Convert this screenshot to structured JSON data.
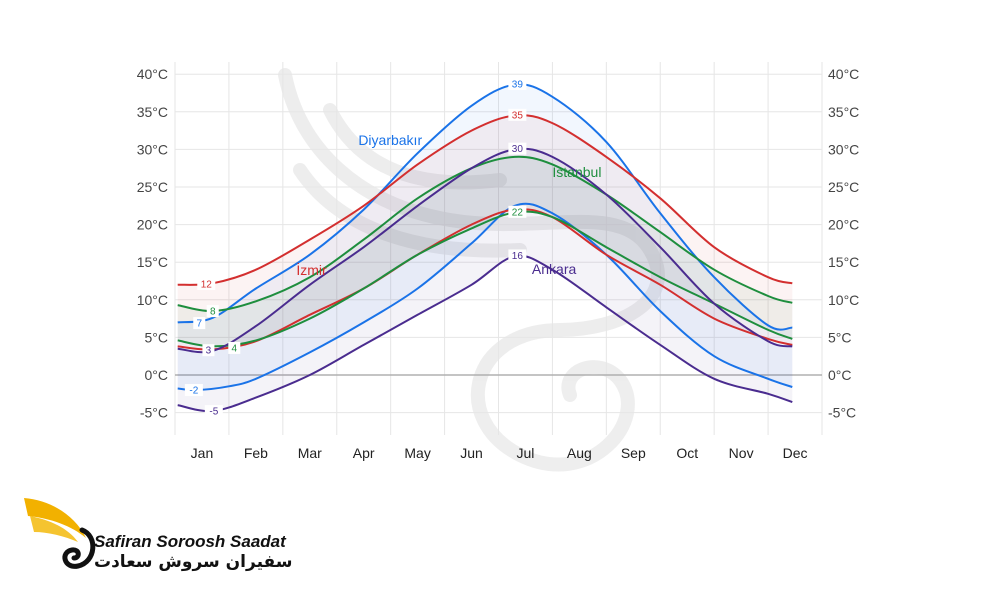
{
  "chart_data": {
    "type": "line",
    "unit": "°C",
    "y_ticks": [
      "40°C",
      "35°C",
      "30°C",
      "25°C",
      "20°C",
      "15°C",
      "10°C",
      "5°C",
      "0°C",
      "-5°C"
    ],
    "ylim": [
      -7,
      41
    ],
    "categories": [
      "Jan",
      "Feb",
      "Mar",
      "Apr",
      "May",
      "Jun",
      "Jul",
      "Aug",
      "Sep",
      "Oct",
      "Nov",
      "Dec"
    ],
    "grid": true,
    "series": [
      {
        "name": "Diyarbakır",
        "kind": "high",
        "color": "#1a73e8",
        "x": [
          0.05,
          0.7,
          1.5,
          2.5,
          3.5,
          4.5,
          5.5,
          6.3,
          7.0,
          8.0,
          9.0,
          10.0,
          11.0,
          11.45
        ],
        "values": [
          7,
          7.6,
          11.5,
          16,
          22,
          29.5,
          35.8,
          38.6,
          37,
          31,
          21.5,
          13,
          6.6,
          6.3
        ]
      },
      {
        "name": "",
        "kind": "low",
        "color": "#1a73e8",
        "x": [
          0.05,
          0.4,
          1.0,
          1.5,
          2.5,
          3.5,
          4.5,
          5.5,
          6.3,
          7.0,
          8.0,
          9.0,
          10.0,
          11.0,
          11.45
        ],
        "values": [
          -1.8,
          -2,
          -1.5,
          -0.5,
          3,
          7,
          11.5,
          17.5,
          22.5,
          21.5,
          16,
          8.5,
          2.5,
          -0.5,
          -1.6
        ]
      },
      {
        "name": "İzmir",
        "kind": "high",
        "color": "#d32f2f",
        "x": [
          0.05,
          0.7,
          1.5,
          2.5,
          3.5,
          4.5,
          5.5,
          6.3,
          7.0,
          8.0,
          9.0,
          10.0,
          11.0,
          11.45
        ],
        "values": [
          12,
          12.2,
          14,
          18,
          22.5,
          28,
          32.5,
          34.5,
          33.5,
          29,
          23.5,
          17,
          13,
          12.2
        ]
      },
      {
        "name": "",
        "kind": "low",
        "color": "#d32f2f",
        "x": [
          0.05,
          0.7,
          1.5,
          2.5,
          3.5,
          4.5,
          5.5,
          6.3,
          7.0,
          8.0,
          9.0,
          10.0,
          11.0,
          11.45
        ],
        "values": [
          3.8,
          3.4,
          4.5,
          8,
          11.5,
          16,
          20,
          22,
          21,
          16,
          12,
          7.5,
          4.8,
          4
        ]
      },
      {
        "name": "İstanbul",
        "kind": "high",
        "color": "#1e8e3e",
        "x": [
          0.05,
          0.7,
          1.5,
          2.5,
          3.5,
          4.5,
          5.5,
          6.3,
          7.0,
          8.0,
          9.0,
          10.0,
          11.0,
          11.45
        ],
        "values": [
          9.3,
          8.5,
          9.8,
          13,
          18,
          23.5,
          27.5,
          29,
          28,
          24,
          19,
          14,
          10.5,
          9.6
        ]
      },
      {
        "name": "",
        "kind": "low",
        "color": "#1e8e3e",
        "x": [
          0.05,
          0.7,
          1.5,
          2.5,
          3.5,
          4.5,
          5.5,
          6.3,
          7.0,
          8.0,
          9.0,
          10.0,
          11.0,
          11.45
        ],
        "values": [
          4.6,
          3.8,
          4.6,
          7.5,
          11.5,
          16,
          19.5,
          21.6,
          21,
          17,
          13,
          9.5,
          6,
          4.8
        ]
      },
      {
        "name": "Ankara",
        "kind": "high",
        "color": "#4a2c8f",
        "x": [
          0.05,
          0.7,
          1.5,
          2.5,
          3.5,
          4.5,
          5.5,
          6.3,
          7.0,
          8.0,
          9.0,
          10.0,
          11.0,
          11.45
        ],
        "values": [
          3.5,
          3.2,
          6.5,
          12,
          17,
          22.5,
          27.5,
          30,
          29,
          24,
          17,
          9.5,
          4.5,
          3.8
        ]
      },
      {
        "name": "",
        "kind": "low",
        "color": "#4a2c8f",
        "x": [
          0.05,
          0.7,
          1.5,
          2.5,
          3.5,
          4.5,
          5.5,
          6.3,
          7.0,
          8.0,
          9.0,
          10.0,
          11.0,
          11.45
        ],
        "values": [
          -4,
          -4.8,
          -3,
          0,
          4,
          8,
          12,
          15.8,
          14,
          9,
          4,
          -0.5,
          -2.5,
          -3.6
        ]
      }
    ],
    "value_labels": [
      {
        "text": "39",
        "x": 6.35,
        "y": 38.7,
        "color": "#1a73e8"
      },
      {
        "text": "35",
        "x": 6.35,
        "y": 34.6,
        "color": "#d32f2f"
      },
      {
        "text": "30",
        "x": 6.35,
        "y": 30.1,
        "color": "#4a2c8f"
      },
      {
        "text": "22",
        "x": 6.35,
        "y": 21.7,
        "color": "#1e8e3e"
      },
      {
        "text": "16",
        "x": 6.35,
        "y": 15.9,
        "color": "#4a2c8f"
      },
      {
        "text": "12",
        "x": 0.58,
        "y": 12.1,
        "color": "#d32f2f"
      },
      {
        "text": "8",
        "x": 0.7,
        "y": 8.5,
        "color": "#1e8e3e"
      },
      {
        "text": "7",
        "x": 0.45,
        "y": 6.9,
        "color": "#1a73e8"
      },
      {
        "text": "3",
        "x": 0.62,
        "y": 3.3,
        "color": "#4a2c8f"
      },
      {
        "text": "4",
        "x": 1.1,
        "y": 3.6,
        "color": "#1e8e3e"
      },
      {
        "text": "-2",
        "x": 0.35,
        "y": -2.0,
        "color": "#1a73e8"
      },
      {
        "text": "-5",
        "x": 0.72,
        "y": -4.8,
        "color": "#4a2c8f"
      }
    ],
    "city_labels": [
      {
        "text": "Diyarbakır",
        "x": 3.4,
        "y": 30.6,
        "color": "#1a73e8"
      },
      {
        "text": "İstanbul",
        "x": 7.0,
        "y": 26.3,
        "color": "#1e8e3e"
      },
      {
        "text": "İzmir",
        "x": 2.25,
        "y": 13.3,
        "color": "#d32f2f"
      },
      {
        "text": "Ankara",
        "x": 6.62,
        "y": 13.4,
        "color": "#4a2c8f"
      }
    ]
  },
  "branding": {
    "name_en": "Safiran Soroosh Saadat",
    "name_fa": "سفیران سروش سعادت",
    "accent_color": "#f2b100",
    "logo_icon": "swan-wing-logo-icon"
  }
}
